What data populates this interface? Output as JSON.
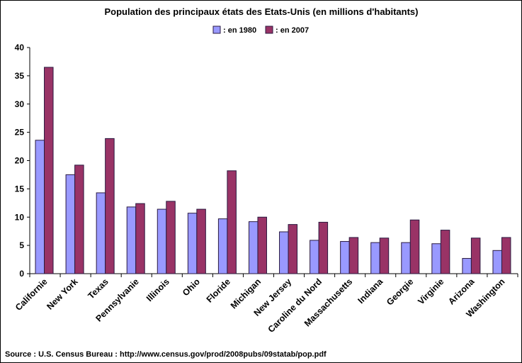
{
  "chart_data": {
    "type": "bar",
    "title": "Population des principaux états des Etats-Unis (en millions d'habitants)",
    "categories": [
      "Californie",
      "New York",
      "Texas",
      "Pennsylvanie",
      "Illinois",
      "Ohio",
      "Floride",
      "Michigan",
      "New Jersey",
      "Caroline du Nord",
      "Massachusetts",
      "Indiana",
      "Georgie",
      "Virginie",
      "Arizona",
      "Washington"
    ],
    "series": [
      {
        "name": ": en 1980",
        "color": "#9999ff",
        "values": [
          23.6,
          17.5,
          14.3,
          11.8,
          11.4,
          10.7,
          9.7,
          9.2,
          7.4,
          5.9,
          5.7,
          5.5,
          5.5,
          5.3,
          2.7,
          4.1
        ]
      },
      {
        "name": ": en 2007",
        "color": "#993366",
        "values": [
          36.5,
          19.2,
          23.9,
          12.4,
          12.8,
          11.4,
          18.2,
          10.0,
          8.7,
          9.1,
          6.4,
          6.3,
          9.5,
          7.7,
          6.3,
          6.4
        ]
      }
    ],
    "ylim": [
      0,
      40
    ],
    "yticks": [
      0,
      5,
      10,
      15,
      20,
      25,
      30,
      35,
      40
    ],
    "grid": false,
    "legend": "top",
    "source": "Source : U.S. Census Bureau : http://www.census.gov/prod/2008pubs/09statab/pop.pdf"
  }
}
